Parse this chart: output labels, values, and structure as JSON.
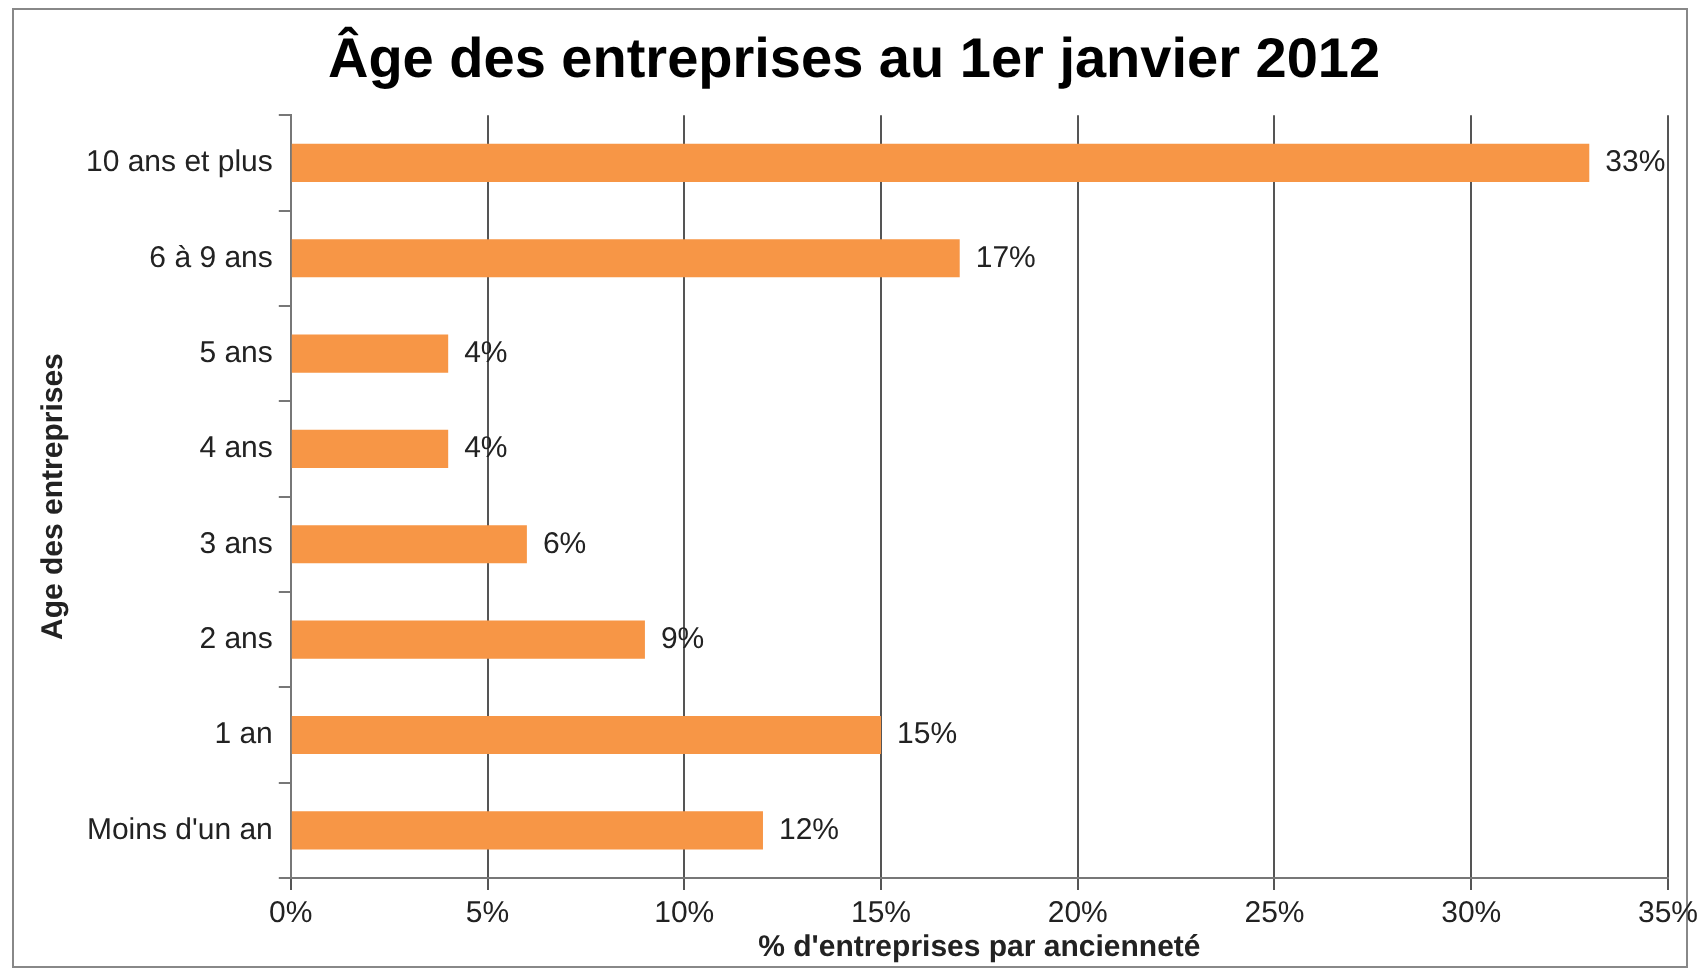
{
  "chart_data": {
    "type": "bar",
    "orientation": "horizontal",
    "title": "Âge des entreprises au 1er janvier 2012",
    "xlabel": "% d'entreprises par ancienneté",
    "ylabel": "Age des entreprises",
    "categories": [
      "10 ans et plus",
      "6 à 9 ans",
      "5 ans",
      "4 ans",
      "3 ans",
      "2 ans",
      "1 an",
      "Moins d'un an"
    ],
    "values": [
      33,
      17,
      4,
      4,
      6,
      9,
      15,
      12
    ],
    "color": "#f79646",
    "value_labels": [
      "33%",
      "17%",
      "4%",
      "4%",
      "6%",
      "9%",
      "15%",
      "12%"
    ],
    "xlim": [
      0,
      35
    ],
    "xticks": [
      {
        "value": 0,
        "label": "0%"
      },
      {
        "value": 5,
        "label": "5%"
      },
      {
        "value": 10,
        "label": "10%"
      },
      {
        "value": 15,
        "label": "15%"
      },
      {
        "value": 20,
        "label": "20%"
      },
      {
        "value": 25,
        "label": "25%"
      },
      {
        "value": 30,
        "label": "30%"
      },
      {
        "value": 35,
        "label": "35%"
      }
    ],
    "grid": "x",
    "legend": false
  }
}
